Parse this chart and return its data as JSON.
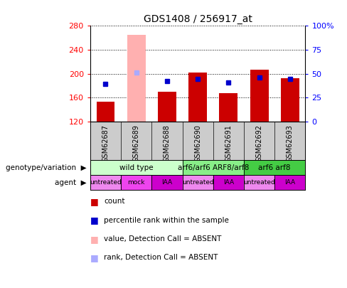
{
  "title": "GDS1408 / 256917_at",
  "samples": [
    "GSM62687",
    "GSM62689",
    "GSM62688",
    "GSM62690",
    "GSM62691",
    "GSM62692",
    "GSM62693"
  ],
  "count_values": [
    153,
    null,
    170,
    202,
    168,
    207,
    193
  ],
  "count_absent_values": [
    null,
    265,
    null,
    null,
    null,
    null,
    null
  ],
  "percentile_values": [
    183,
    null,
    188,
    192,
    186,
    194,
    191
  ],
  "percentile_absent_values": [
    null,
    202,
    null,
    null,
    null,
    null,
    null
  ],
  "ylim_left": [
    120,
    280
  ],
  "ylim_right": [
    0,
    100
  ],
  "yticks_left": [
    120,
    160,
    200,
    240,
    280
  ],
  "yticks_right": [
    0,
    25,
    50,
    75,
    100
  ],
  "bar_color_red": "#cc0000",
  "bar_color_pink": "#ffb0b0",
  "dot_color_blue": "#0000cc",
  "dot_color_lightblue": "#aaaaff",
  "genotype_groups": [
    {
      "label": "wild type",
      "start": 0,
      "end": 3,
      "color": "#ccffcc"
    },
    {
      "label": "arf6/arf6 ARF8/arf8",
      "start": 3,
      "end": 5,
      "color": "#88ee88"
    },
    {
      "label": "arf6 arf8",
      "start": 5,
      "end": 7,
      "color": "#44cc44"
    }
  ],
  "agent_values": [
    "untreated",
    "mock",
    "IAA",
    "untreated",
    "IAA",
    "untreated",
    "IAA"
  ],
  "agent_colors": [
    "#ee88ee",
    "#ee44ee",
    "#cc00cc",
    "#ee88ee",
    "#cc00cc",
    "#ee88ee",
    "#cc00cc"
  ],
  "legend_items": [
    {
      "label": "count",
      "color": "#cc0000"
    },
    {
      "label": "percentile rank within the sample",
      "color": "#0000cc"
    },
    {
      "label": "value, Detection Call = ABSENT",
      "color": "#ffb0b0"
    },
    {
      "label": "rank, Detection Call = ABSENT",
      "color": "#aaaaff"
    }
  ]
}
